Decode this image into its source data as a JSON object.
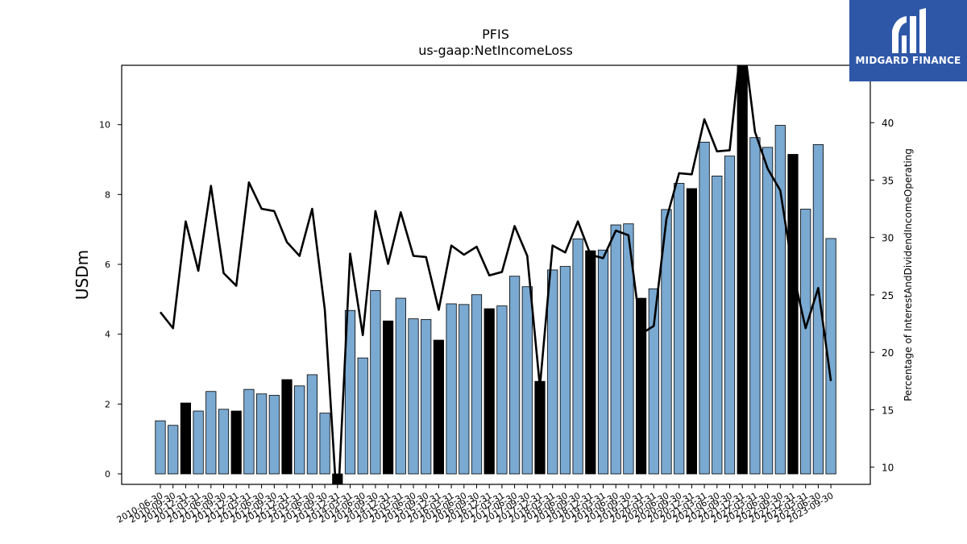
{
  "chart_data": {
    "type": "bar",
    "title": "PFIS",
    "subtitle": "us-gaap:NetIncomeLoss",
    "ylabel": "USDm",
    "y2label": "Percentage of InterestAndDividendIncomeOperating",
    "ylim": [
      -0.3,
      11.7
    ],
    "y2lim": [
      8.5,
      45
    ],
    "yticks": [
      0,
      2,
      4,
      6,
      8,
      10
    ],
    "y2ticks": [
      10,
      15,
      20,
      25,
      30,
      35,
      40
    ],
    "categories": [
      "2010-06-30",
      "2010-09-30",
      "2010-12-31",
      "2011-03-31",
      "2011-06-30",
      "2011-09-30",
      "2011-12-31",
      "2012-03-31",
      "2012-06-30",
      "2012-09-30",
      "2012-12-31",
      "2013-03-31",
      "2013-06-30",
      "2013-09-30",
      "2013-12-31",
      "2014-03-31",
      "2014-06-30",
      "2014-09-30",
      "2014-12-31",
      "2015-03-31",
      "2015-06-30",
      "2015-09-30",
      "2015-12-31",
      "2016-03-31",
      "2016-06-30",
      "2016-09-30",
      "2016-12-31",
      "2017-03-31",
      "2017-06-30",
      "2017-09-30",
      "2017-12-31",
      "2018-03-31",
      "2018-06-30",
      "2018-09-30",
      "2018-12-31",
      "2019-03-31",
      "2019-06-30",
      "2019-09-30",
      "2019-12-31",
      "2020-03-31",
      "2020-06-30",
      "2020-09-30",
      "2020-12-31",
      "2021-03-31",
      "2021-06-30",
      "2021-09-30",
      "2021-12-31",
      "2022-03-31",
      "2022-06-30",
      "2022-09-30",
      "2022-12-31",
      "2023-03-31",
      "2023-06-30",
      "2023-09-30"
    ],
    "tick_labels": [
      "2010-06-30",
      "2010-09-30",
      "2010-12-31",
      "2011-03-31",
      "2011-06-30",
      "2011-09-30",
      "2011-12-31",
      "2012-03-31",
      "2012-06-30",
      "2012-09-30",
      "2012-12-31",
      "2013-03-31",
      "2013-06-30",
      "2013-09-30",
      "2013-12-31",
      "2014-03-31",
      "2014-06-30",
      "2014-09-30",
      "2014-12-31",
      "2015-03-31",
      "2015-06-30",
      "2015-09-30",
      "2015-12-31",
      "2016-03-31",
      "2016-06-30",
      "2016-09-30",
      "2016-12-31",
      "2017-03-31",
      "2017-06-30",
      "2017-09-30",
      "2017-12-31",
      "2018-03-31",
      "2018-06-30",
      "2018-09-30",
      "2018-12-31",
      "2019-03-31",
      "2019-06-30",
      "2019-09-30",
      "2019-12-31",
      "2020-03-31",
      "2020-06-30",
      "2020-09-30",
      "2020-12-31",
      "2021-03-31",
      "2021-06-30",
      "2021-09-30",
      "2021-12-31",
      "2022-03-31",
      "2022-06-30",
      "2022-09-30",
      "2022-12-31",
      "2023-03-31",
      "2023-06-30",
      "2023-09-30"
    ],
    "series": [
      {
        "axis": "left",
        "mark": "bar",
        "values": [
          1.52,
          1.39,
          2.03,
          1.8,
          2.36,
          1.85,
          1.8,
          2.42,
          2.29,
          2.25,
          2.7,
          2.52,
          2.84,
          1.74,
          -0.55,
          4.68,
          3.32,
          5.25,
          4.38,
          5.03,
          4.44,
          4.42,
          3.83,
          4.87,
          4.85,
          5.13,
          4.73,
          4.81,
          5.66,
          5.36,
          2.65,
          5.84,
          5.94,
          6.73,
          6.39,
          6.41,
          7.13,
          7.16,
          5.03,
          5.3,
          7.57,
          8.32,
          8.17,
          9.5,
          8.53,
          9.1,
          12.5,
          9.63,
          9.35,
          9.98,
          9.15,
          7.58,
          9.43,
          6.74
        ],
        "colors": [
          "#7aa9d1",
          "#7aa9d1",
          "#000000",
          "#7aa9d1",
          "#7aa9d1",
          "#7aa9d1",
          "#000000",
          "#7aa9d1",
          "#7aa9d1",
          "#7aa9d1",
          "#000000",
          "#7aa9d1",
          "#7aa9d1",
          "#7aa9d1",
          "#000000",
          "#7aa9d1",
          "#7aa9d1",
          "#7aa9d1",
          "#000000",
          "#7aa9d1",
          "#7aa9d1",
          "#7aa9d1",
          "#000000",
          "#7aa9d1",
          "#7aa9d1",
          "#7aa9d1",
          "#000000",
          "#7aa9d1",
          "#7aa9d1",
          "#7aa9d1",
          "#000000",
          "#7aa9d1",
          "#7aa9d1",
          "#7aa9d1",
          "#000000",
          "#7aa9d1",
          "#7aa9d1",
          "#7aa9d1",
          "#000000",
          "#7aa9d1",
          "#7aa9d1",
          "#7aa9d1",
          "#000000",
          "#7aa9d1",
          "#7aa9d1",
          "#7aa9d1",
          "#000000",
          "#7aa9d1",
          "#7aa9d1",
          "#7aa9d1",
          "#000000",
          "#7aa9d1",
          "#7aa9d1",
          "#7aa9d1"
        ]
      },
      {
        "axis": "right",
        "mark": "line",
        "color": "#000000",
        "values": [
          23.5,
          22.1,
          31.4,
          27.1,
          34.5,
          26.9,
          25.8,
          34.8,
          32.5,
          32.3,
          29.6,
          28.4,
          32.5,
          23.7,
          6.0,
          28.6,
          21.5,
          32.3,
          27.7,
          32.2,
          28.4,
          28.3,
          23.7,
          29.3,
          28.5,
          29.2,
          26.7,
          27.0,
          31.0,
          28.4,
          17.0,
          29.3,
          28.7,
          31.4,
          28.5,
          28.2,
          30.6,
          30.2,
          21.6,
          22.3,
          31.6,
          35.6,
          35.5,
          40.3,
          37.5,
          37.6,
          48.0,
          39.2,
          36.0,
          34.1,
          27.0,
          22.1,
          25.6,
          17.5
        ]
      }
    ]
  },
  "logo": {
    "text": "MIDGARD FINANCE",
    "color": "#2e57a8"
  }
}
